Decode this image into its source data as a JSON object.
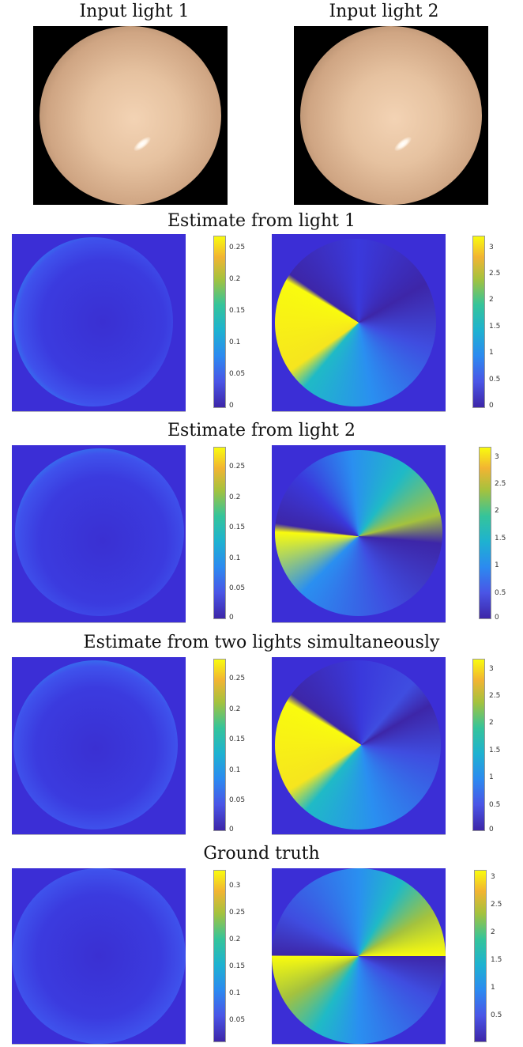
{
  "figure": {
    "input_labels": [
      "Input light 1",
      "Input light 2"
    ],
    "rows": [
      {
        "title": "Estimate from light 1",
        "left_colorbar_ticks": [
          "0.25",
          "0.2",
          "0.15",
          "0.1",
          "0.05",
          "0"
        ],
        "right_colorbar_ticks": [
          "3",
          "2.5",
          "2",
          "1.5",
          "1",
          "0.5",
          "0"
        ]
      },
      {
        "title": "Estimate from light 2",
        "left_colorbar_ticks": [
          "0.25",
          "0.2",
          "0.15",
          "0.1",
          "0.05",
          "0"
        ],
        "right_colorbar_ticks": [
          "3",
          "2.5",
          "2",
          "1.5",
          "1",
          "0.5",
          "0"
        ]
      },
      {
        "title": "Estimate from two lights simultaneously",
        "left_colorbar_ticks": [
          "0.25",
          "0.2",
          "0.15",
          "0.1",
          "0.05",
          "0"
        ],
        "right_colorbar_ticks": [
          "3",
          "2.5",
          "2",
          "1.5",
          "1",
          "0.5",
          "0"
        ]
      },
      {
        "title": "Ground truth",
        "left_colorbar_ticks": [
          "0.3",
          "0.25",
          "0.2",
          "0.15",
          "0.1",
          "0.05"
        ],
        "right_colorbar_ticks": [
          "3",
          "2.5",
          "2",
          "1.5",
          "1",
          "0.5"
        ]
      }
    ],
    "colors": {
      "background_blue": "#3b2ed6",
      "colormap": "parula"
    }
  }
}
